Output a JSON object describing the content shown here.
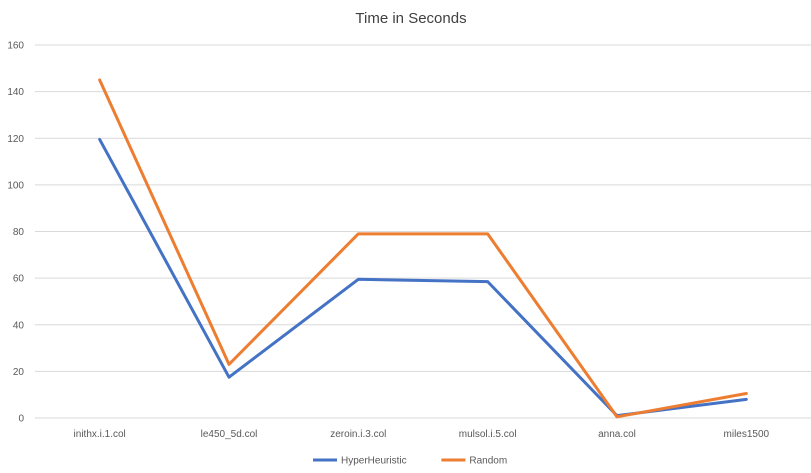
{
  "chart_data": {
    "type": "line",
    "title": "Time in Seconds",
    "categories": [
      "inithx.i.1.col",
      "le450_5d.col",
      "zeroin.i.3.col",
      "mulsol.i.5.col",
      "anna.col",
      "miles1500"
    ],
    "ylim": [
      0,
      160
    ],
    "yticks": [
      0,
      20,
      40,
      60,
      80,
      100,
      120,
      140,
      160
    ],
    "grid": true,
    "legend_position": "bottom",
    "series": [
      {
        "name": "HyperHeuristic",
        "color": "#4472C4",
        "values": [
          119.5,
          17.5,
          59.5,
          58.5,
          1,
          8
        ]
      },
      {
        "name": "Random",
        "color": "#ED7D31",
        "values": [
          145,
          23,
          79,
          79,
          0.5,
          10.5
        ]
      }
    ]
  }
}
